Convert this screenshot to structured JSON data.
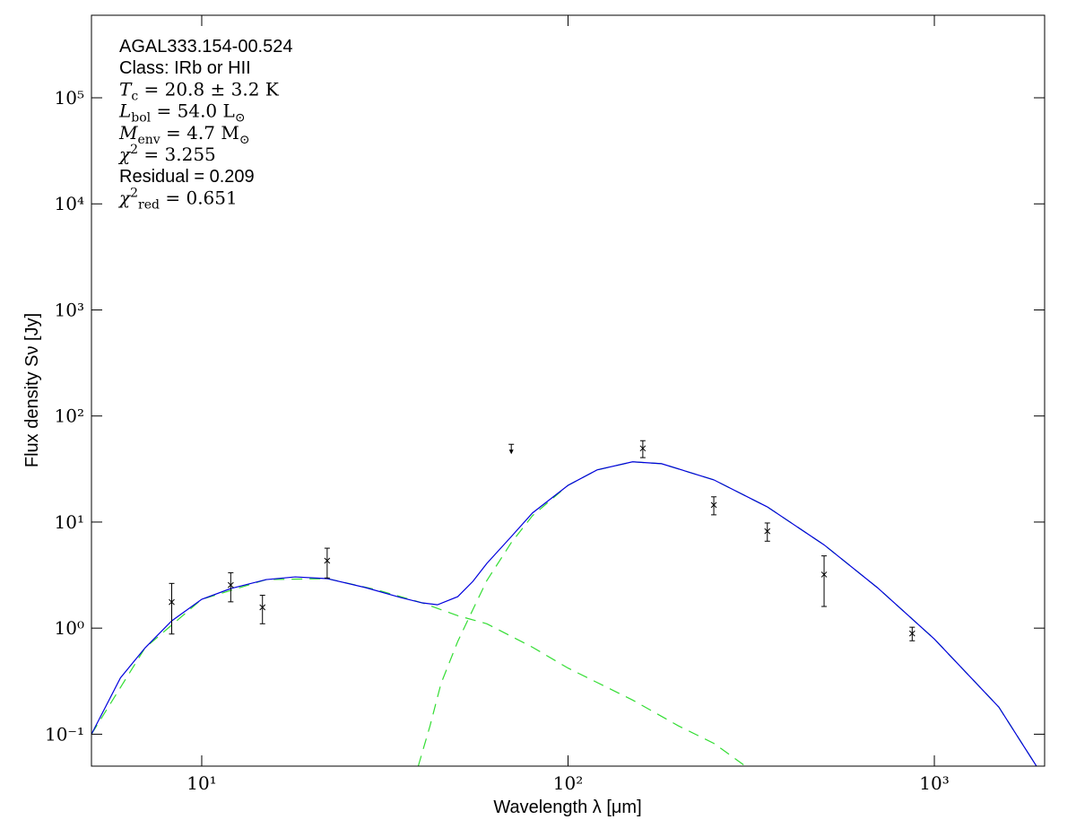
{
  "chart_data": {
    "type": "line",
    "xlabel": "Wavelength λ [μm]",
    "ylabel": "Flux density Sν [Jy]",
    "xscale": "log",
    "yscale": "log",
    "xlim": [
      5,
      2000
    ],
    "ylim": [
      0.05,
      600000
    ],
    "xticks": [
      {
        "value": 10,
        "label": "10¹"
      },
      {
        "value": 100,
        "label": "10²"
      },
      {
        "value": 1000,
        "label": "10³"
      }
    ],
    "yticks": [
      {
        "value": 0.1,
        "label": "10⁻¹"
      },
      {
        "value": 1,
        "label": "10⁰"
      },
      {
        "value": 10,
        "label": "10¹"
      },
      {
        "value": 100,
        "label": "10²"
      },
      {
        "value": 1000,
        "label": "10³"
      },
      {
        "value": 10000,
        "label": "10⁴"
      },
      {
        "value": 100000,
        "label": "10⁵"
      }
    ],
    "annotations": [
      {
        "font": "sans",
        "segments": [
          {
            "t": "AGAL333.154-00.524"
          }
        ]
      },
      {
        "font": "sans",
        "segments": [
          {
            "t": "Class: IRb or HII"
          }
        ]
      },
      {
        "font": "serif",
        "segments": [
          {
            "t": "T",
            "s": "it"
          },
          {
            "t": "c",
            "s": "sub"
          },
          {
            "t": " = 20.8 ± 3.2 K"
          }
        ]
      },
      {
        "font": "serif",
        "segments": [
          {
            "t": "L",
            "s": "it"
          },
          {
            "t": "bol",
            "s": "sub"
          },
          {
            "t": " = 54.0 L"
          },
          {
            "t": "⊙",
            "s": "sub"
          }
        ]
      },
      {
        "font": "serif",
        "segments": [
          {
            "t": "M",
            "s": "it"
          },
          {
            "t": "env",
            "s": "sub"
          },
          {
            "t": " = 4.7 M"
          },
          {
            "t": "⊙",
            "s": "sub"
          }
        ]
      },
      {
        "font": "serif",
        "segments": [
          {
            "t": "χ",
            "s": "it"
          },
          {
            "t": "2",
            "s": "sup"
          },
          {
            "t": " = 3.255"
          }
        ]
      },
      {
        "font": "sans",
        "segments": [
          {
            "t": "Residual = 0.209"
          }
        ]
      },
      {
        "font": "serif",
        "segments": [
          {
            "t": "χ",
            "s": "it"
          },
          {
            "t": "2",
            "s": "sup"
          },
          {
            "t": "red",
            "s": "sub"
          },
          {
            "t": " = 0.651"
          }
        ]
      }
    ],
    "series": [
      {
        "color": "#33dd33",
        "dash": true,
        "x": [
          5,
          7,
          10,
          15,
          22,
          30,
          40,
          50,
          60,
          80,
          100,
          150,
          200,
          250,
          305
        ],
        "values": [
          0.1,
          0.65,
          1.87,
          2.87,
          2.93,
          2.3,
          1.73,
          1.31,
          1.1,
          0.66,
          0.42,
          0.21,
          0.12,
          0.082,
          0.05
        ]
      },
      {
        "color": "#33dd33",
        "dash": true,
        "x": [
          39,
          42,
          45,
          50,
          55,
          60,
          70,
          80,
          100,
          120,
          150,
          180,
          250,
          350,
          500,
          700,
          1000,
          1500,
          1900
        ],
        "values": [
          0.05,
          0.12,
          0.3,
          0.75,
          1.5,
          2.8,
          6.4,
          11.5,
          22.2,
          31,
          37,
          35.5,
          25,
          13.9,
          6.1,
          2.4,
          0.79,
          0.18,
          0.05
        ]
      },
      {
        "color": "#0000dd",
        "dash": false,
        "x": [
          5,
          6,
          7,
          8.28,
          10,
          12,
          15,
          18,
          22,
          28,
          35,
          40,
          44,
          50,
          55,
          60,
          70,
          80,
          100,
          120,
          150,
          180,
          250,
          350,
          500,
          700,
          1000,
          1500,
          1900
        ],
        "values": [
          0.1,
          0.34,
          0.65,
          1.17,
          1.87,
          2.36,
          2.87,
          3.04,
          2.93,
          2.41,
          1.94,
          1.73,
          1.66,
          1.98,
          2.76,
          4.07,
          7.3,
          12.2,
          22.2,
          31,
          37,
          35.5,
          25,
          13.9,
          6.1,
          2.4,
          0.79,
          0.18,
          0.05
        ]
      }
    ],
    "points": {
      "color": "#000000",
      "x": [
        8.28,
        12,
        14.65,
        22,
        160,
        250,
        350,
        500,
        870
      ],
      "values": [
        1.76,
        2.55,
        1.57,
        4.32,
        49.5,
        14.5,
        8.2,
        3.2,
        0.89
      ],
      "errors": [
        0.88,
        0.78,
        0.47,
        1.35,
        9,
        2.8,
        1.6,
        1.6,
        0.13
      ]
    },
    "upper_limits": {
      "color": "#000000",
      "x": [
        70
      ],
      "values": [
        52
      ]
    }
  }
}
